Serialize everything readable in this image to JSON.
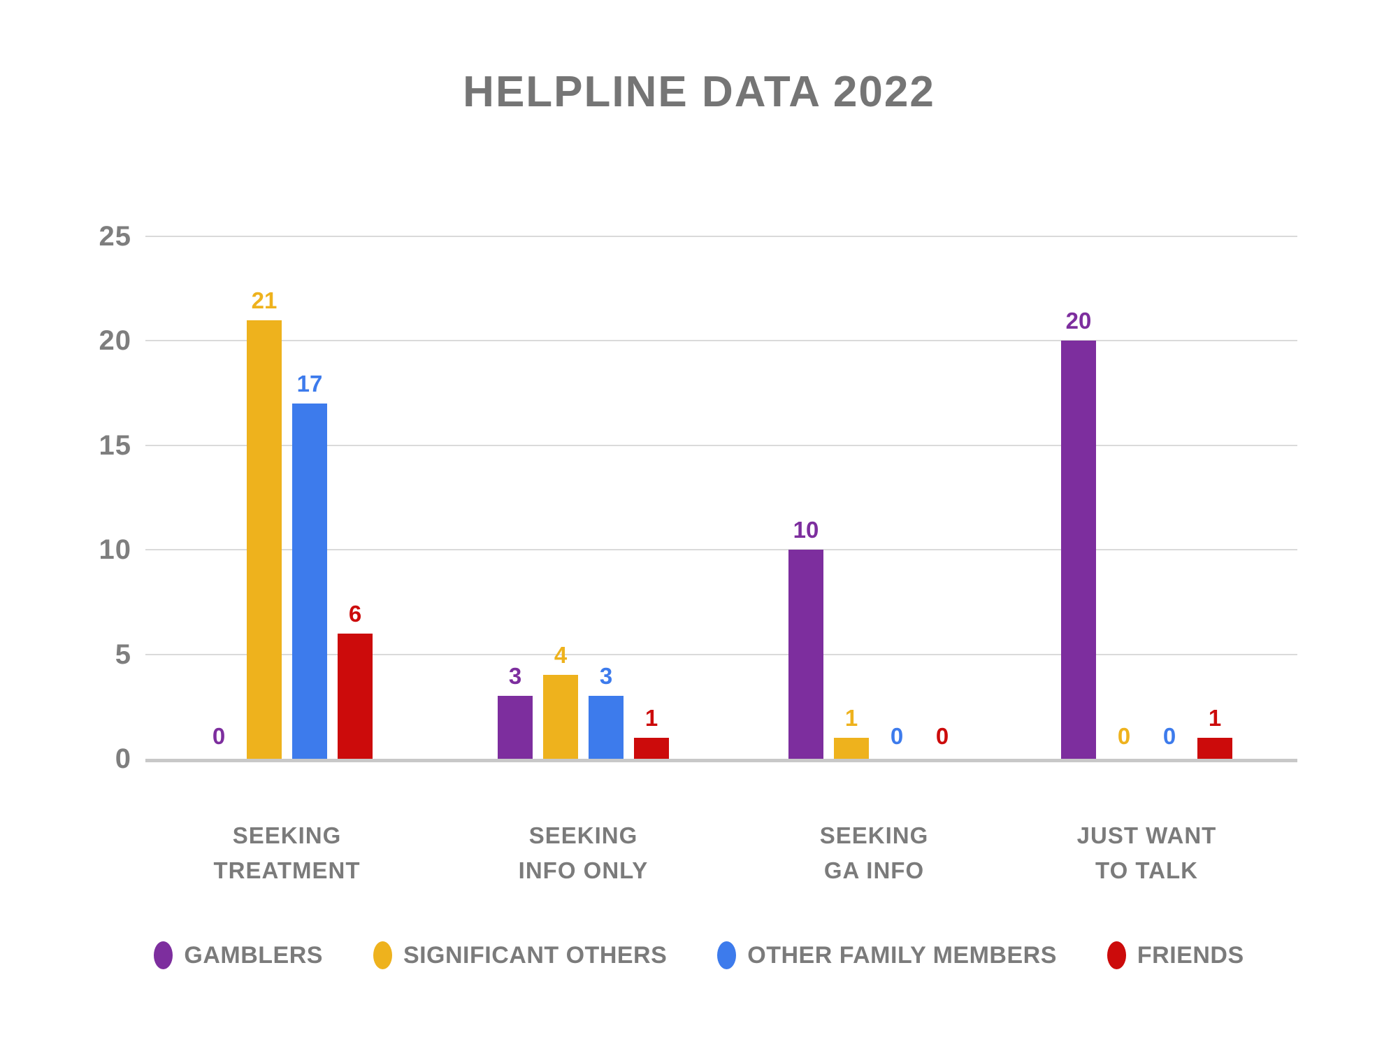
{
  "title": "HELPLINE DATA 2022",
  "chart_data": {
    "type": "bar",
    "title": "HELPLINE DATA 2022",
    "categories": [
      "SEEKING\nTREATMENT",
      "SEEKING\nINFO ONLY",
      "SEEKING\nGA INFO",
      "JUST WANT\nTO TALK"
    ],
    "series": [
      {
        "name": "GAMBLERS",
        "color": "#7D2E9E",
        "values": [
          0,
          3,
          10,
          20
        ]
      },
      {
        "name": "SIGNIFICANT OTHERS",
        "color": "#EEB21D",
        "values": [
          21,
          4,
          1,
          0
        ]
      },
      {
        "name": "OTHER FAMILY MEMBERS",
        "color": "#3D7BEC",
        "values": [
          17,
          3,
          0,
          0
        ]
      },
      {
        "name": "FRIENDS",
        "color": "#CC0B0B",
        "values": [
          6,
          1,
          0,
          1
        ]
      }
    ],
    "y_ticks": [
      0,
      5,
      10,
      15,
      20,
      25
    ],
    "ylim": [
      0,
      25
    ],
    "grid": true,
    "bar_value_labels": true,
    "legend_position": "bottom"
  },
  "styles": {
    "title_color": "#757575",
    "axis_label_color": "#7E7E7E",
    "category_label_color": "#7B7B7B",
    "legend_label_color": "#7B7B7B",
    "gridline_color": "#DADADA",
    "axis_line_color": "#C8C8C8",
    "background": "#FFFFFF"
  }
}
